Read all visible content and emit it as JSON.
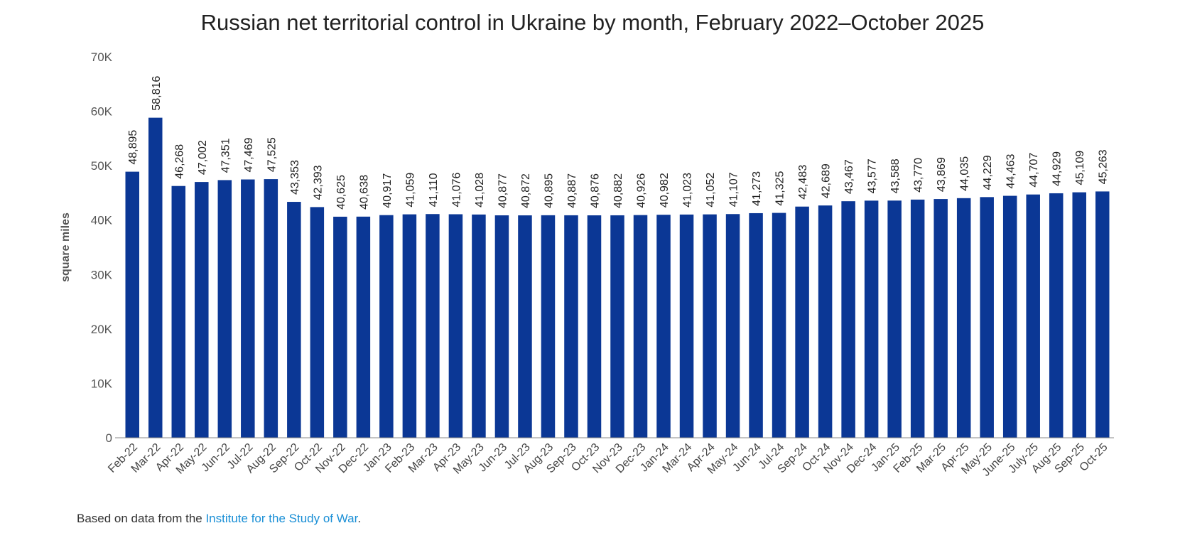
{
  "chart_data": {
    "type": "bar",
    "title": "Russian net territorial control in Ukraine by month, February 2022–October 2025",
    "xlabel": "",
    "ylabel": "square miles",
    "ylim": [
      0,
      70000
    ],
    "yticks": [
      0,
      10000,
      20000,
      30000,
      40000,
      50000,
      60000,
      70000
    ],
    "ytick_labels": [
      "0",
      "10K",
      "20K",
      "30K",
      "40K",
      "50K",
      "60K",
      "70K"
    ],
    "grid": false,
    "bar_color": "#0b3795",
    "categories": [
      "Feb-22",
      "Mar-22",
      "Apr-22",
      "May-22",
      "Jun-22",
      "Jul-22",
      "Aug-22",
      "Sep-22",
      "Oct-22",
      "Nov-22",
      "Dec-22",
      "Jan-23",
      "Feb-23",
      "Mar-23",
      "Apr-23",
      "May-23",
      "Jun-23",
      "Jul-23",
      "Aug-23",
      "Sep-23",
      "Oct-23",
      "Nov-23",
      "Dec-23",
      "Jan-24",
      "Mar-24",
      "Apr-24",
      "May-24",
      "Jun-24",
      "Jul-24",
      "Sep-24",
      "Oct-24",
      "Nov-24",
      "Dec-24",
      "Jan-25",
      "Feb-25",
      "Mar-25",
      "Apr-25",
      "May-25",
      "June-25",
      "July-25",
      "Aug-25",
      "Sep-25",
      "Oct-25"
    ],
    "values": [
      48895,
      58816,
      46268,
      47002,
      47351,
      47469,
      47525,
      43353,
      42393,
      40625,
      40638,
      40917,
      41059,
      41110,
      41076,
      41028,
      40877,
      40872,
      40895,
      40887,
      40876,
      40882,
      40926,
      40982,
      41023,
      41052,
      41107,
      41273,
      41325,
      42483,
      42689,
      43467,
      43577,
      43588,
      43770,
      43869,
      44035,
      44229,
      44463,
      44707,
      44929,
      45109,
      45263
    ],
    "value_labels": [
      "48,895",
      "58,816",
      "46,268",
      "47,002",
      "47,351",
      "47,469",
      "47,525",
      "43,353",
      "42,393",
      "40,625",
      "40,638",
      "40,917",
      "41,059",
      "41,110",
      "41,076",
      "41,028",
      "40,877",
      "40,872",
      "40,895",
      "40,887",
      "40,876",
      "40,882",
      "40,926",
      "40,982",
      "41,023",
      "41,052",
      "41,107",
      "41,273",
      "41,325",
      "42,483",
      "42,689",
      "43,467",
      "43,577",
      "43,588",
      "43,770",
      "43,869",
      "44,035",
      "44,229",
      "44,463",
      "44,707",
      "44,929",
      "45,109",
      "45,263"
    ]
  },
  "footer": {
    "prefix": "Based on data from the ",
    "link_text": "Institute for the Study of War",
    "suffix": "."
  }
}
